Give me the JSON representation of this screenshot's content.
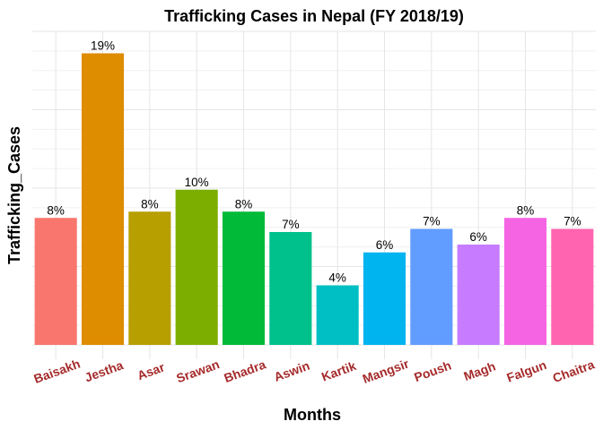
{
  "chart_data": {
    "type": "bar",
    "title": "Trafficking Cases in Nepal (FY 2018/19)",
    "xlabel": "Months",
    "ylabel": "Trafficking_Cases",
    "categories": [
      "Baisakh",
      "Jestha",
      "Asar",
      "Srawan",
      "Bhadra",
      "Aswin",
      "Kartik",
      "Mangsir",
      "Poush",
      "Magh",
      "Falgun",
      "Chaitra"
    ],
    "values": [
      8.1,
      18.6,
      8.5,
      9.9,
      8.5,
      7.2,
      3.8,
      5.9,
      7.4,
      6.4,
      8.1,
      7.4
    ],
    "data_labels": [
      "8%",
      "19%",
      "8%",
      "10%",
      "8%",
      "7%",
      "4%",
      "6%",
      "7%",
      "6%",
      "8%",
      "7%"
    ],
    "colors": [
      "#F8766D",
      "#DE8C00",
      "#B79F00",
      "#7CAE00",
      "#00BA38",
      "#00C08B",
      "#00BFC4",
      "#00B4F0",
      "#619CFF",
      "#C77CFF",
      "#F564E3",
      "#FF64B0"
    ],
    "tick_label_color": "#A52A2A",
    "ylim": [
      0,
      20
    ],
    "y_ticks_shown": false,
    "grid": true,
    "legend": "none"
  }
}
